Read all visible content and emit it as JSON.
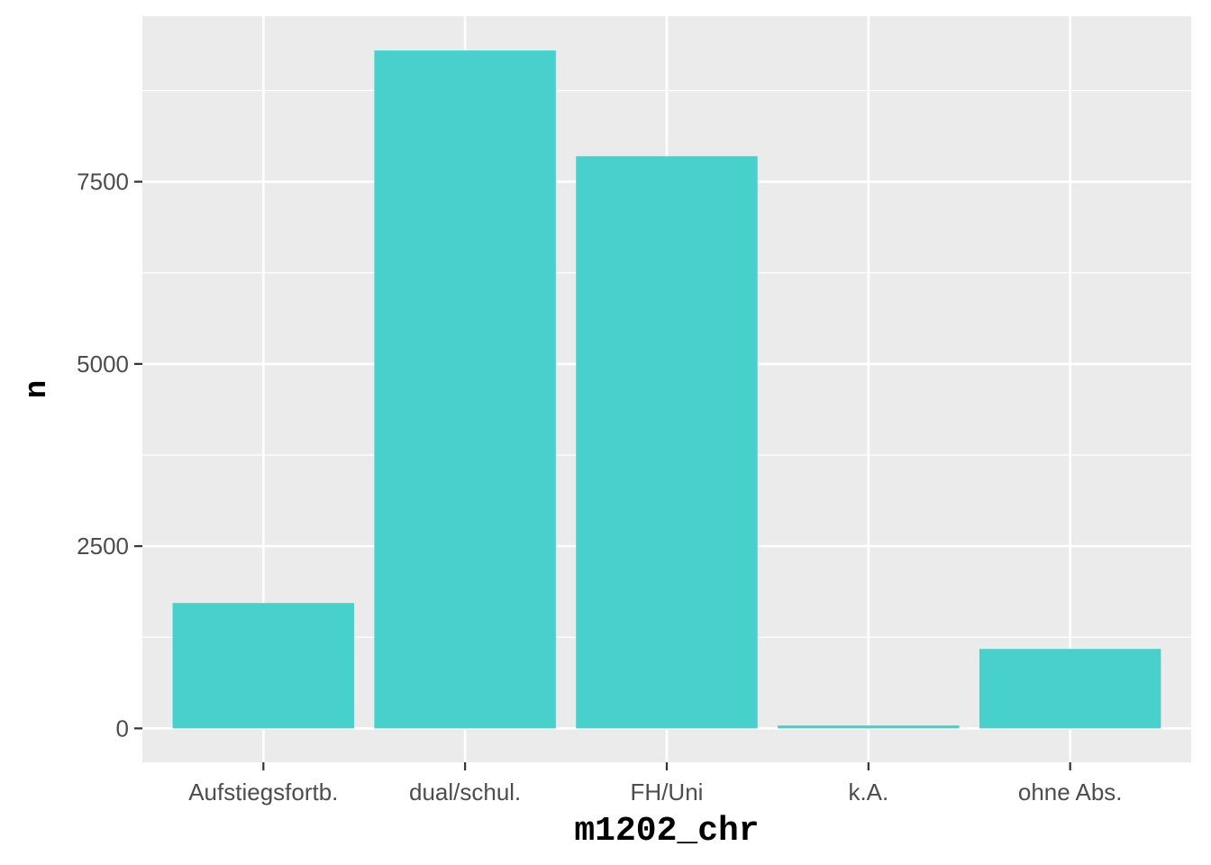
{
  "chart_data": {
    "type": "bar",
    "categories": [
      "Aufstiegsfortb.",
      "dual/schul.",
      "FH/Uni",
      "k.A.",
      "ohne Abs."
    ],
    "values": [
      1720,
      9300,
      7850,
      40,
      1090
    ],
    "xlabel": "m1202_chr",
    "ylabel": "n",
    "ylim": [
      -465,
      9770
    ],
    "yticks": [
      0,
      2500,
      5000,
      7500
    ],
    "ytick_labels": [
      "0",
      "2500",
      "5000",
      "7500"
    ],
    "grid": true,
    "legend": "none",
    "colors": {
      "bar": "#48D1CC",
      "panel": "#EBEBEB",
      "grid": "#FFFFFF",
      "tick_text": "#4D4D4D",
      "tick_mark": "#333333"
    }
  }
}
